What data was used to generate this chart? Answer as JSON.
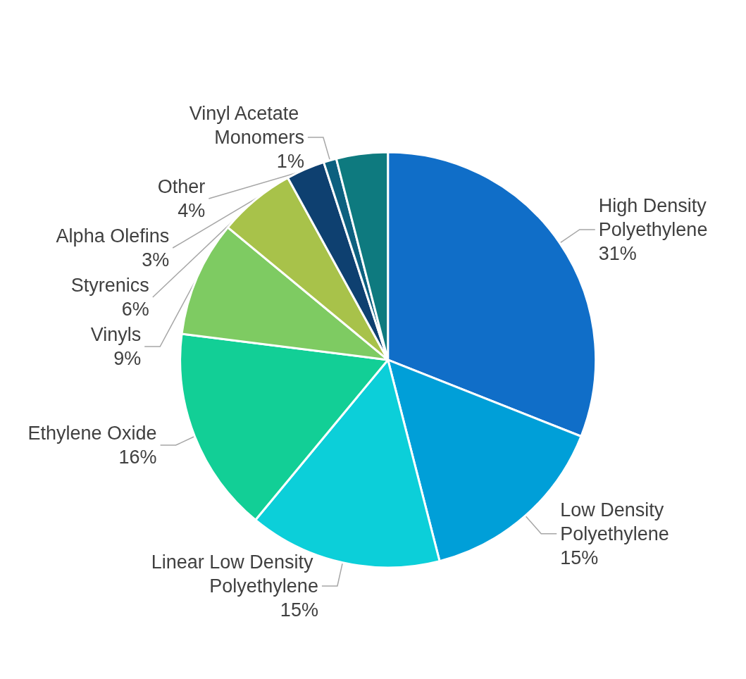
{
  "chart_data": {
    "type": "pie",
    "categories": [
      "High Density Polyethylene",
      "Low Density Polyethylene",
      "Linear Low Density Polyethylene",
      "Ethylene Oxide",
      "Vinyls",
      "Styrenics",
      "Alpha Olefins",
      "Vinyl Acetate Monomers",
      "Other"
    ],
    "values": [
      31,
      15,
      15,
      16,
      9,
      6,
      3,
      1,
      4
    ],
    "value_labels": [
      "31%",
      "15%",
      "15%",
      "16%",
      "9%",
      "6%",
      "3%",
      "1%",
      "4%"
    ],
    "colors": [
      "#106ec8",
      "#009fd8",
      "#0ccfd9",
      "#12cf96",
      "#7ecb62",
      "#a8c24a",
      "#0e4070",
      "#0d607f",
      "#0e7a7f"
    ],
    "legend": false
  }
}
